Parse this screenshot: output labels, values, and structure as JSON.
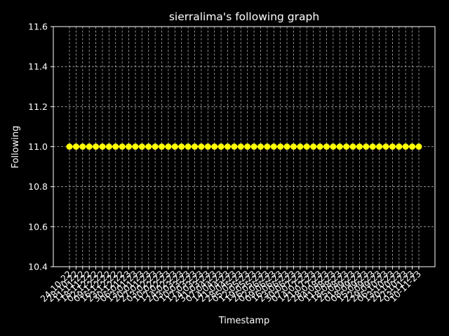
{
  "chart_data": {
    "type": "line",
    "title": "sierralima's following graph",
    "xlabel": "Timestamp",
    "ylabel": "Following",
    "categories": [
      "24-10-22",
      "28-10-22",
      "11-11-22",
      "18-11-22",
      "02-12-22",
      "09-12-22",
      "16-12-22",
      "23-12-22",
      "30-12-22",
      "06-01-23",
      "13-01-23",
      "20-01-23",
      "27-01-23",
      "03-02-23",
      "10-02-23",
      "17-02-23",
      "24-02-23",
      "03-03-23",
      "10-03-23",
      "17-03-23",
      "24-03-23",
      "31-03-23",
      "07-04-23",
      "14-04-23",
      "21-04-23",
      "28-04-23",
      "05-05-23",
      "12-05-23",
      "19-05-23",
      "26-05-23",
      "02-06-23",
      "09-06-23",
      "16-06-23",
      "23-06-23",
      "30-06-23",
      "07-07-23",
      "14-07-23",
      "21-07-23",
      "28-07-23",
      "04-08-23",
      "11-08-23",
      "18-08-23",
      "25-08-23",
      "01-09-23",
      "08-09-23",
      "15-09-23",
      "22-09-23",
      "29-09-23",
      "06-10-23",
      "13-10-23",
      "20-10-23",
      "27-10-23",
      "03-11-23",
      "10-11-23"
    ],
    "tick_labels": [
      "24-10-22",
      "28-10-22",
      "11-11-22",
      "18-11-22",
      "02-12-22",
      "09-12-22",
      "16-12-22",
      "23-12-22",
      "30-12-22",
      "06-01-23",
      "13-01-23",
      "20-01-23",
      "27-01-23",
      "03-02-23",
      "10-02-23",
      "17-02-23",
      "24-02-23",
      "03-03-23",
      "10-03-23",
      "17-03-23",
      "24-03-23",
      "31-03-23",
      "07-04-23",
      "14-04-23",
      "21-04-23",
      "28-04-23",
      "05-05-23",
      "12-05-23",
      "19-05-23",
      "26-05-23",
      "02-06-23",
      "09-06-23",
      "16-06-23",
      "23-06-23",
      "30-06-23",
      "07-07-23",
      "14-07-23",
      "21-07-23",
      "28-07-23",
      "04-08-23",
      "11-08-23",
      "18-08-23",
      "25-08-23",
      "01-09-23",
      "08-09-23",
      "15-09-23",
      "22-09-23",
      "29-09-23",
      "06-10-23",
      "13-10-23",
      "20-10-23",
      "27-10-23",
      "03-11-23",
      "10-11-23"
    ],
    "series": [
      {
        "values": [
          11,
          11,
          11,
          11,
          11,
          11,
          11,
          11,
          11,
          11,
          11,
          11,
          11,
          11,
          11,
          11,
          11,
          11,
          11,
          11,
          11,
          11,
          11,
          11,
          11,
          11,
          11,
          11,
          11,
          11,
          11,
          11,
          11,
          11,
          11,
          11,
          11,
          11,
          11,
          11,
          11,
          11,
          11,
          11,
          11,
          11,
          11,
          11,
          11,
          11,
          11,
          11,
          11,
          11
        ],
        "color": "#ffff00"
      }
    ],
    "ylim": [
      10.4,
      11.6
    ],
    "yticks": [
      10.4,
      10.6,
      10.8,
      11.0,
      11.2,
      11.4,
      11.6
    ],
    "ytick_labels": [
      "10.4",
      "10.6",
      "10.8",
      "11.0",
      "11.2",
      "11.4",
      "11.6"
    ],
    "grid": true,
    "background": "#000000",
    "foreground": "#ffffff",
    "grid_color": "#b0b0b0"
  }
}
